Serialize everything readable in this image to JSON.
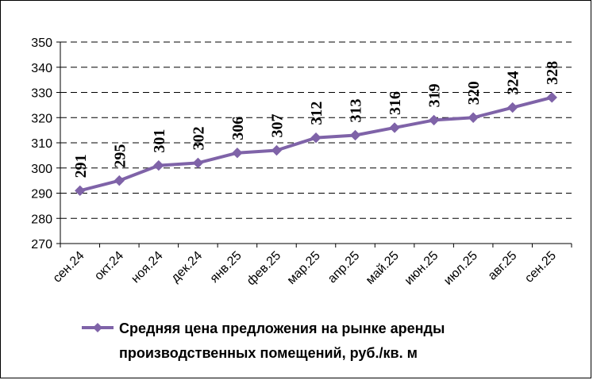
{
  "chart_data": {
    "type": "line",
    "categories": [
      "сен.24",
      "окт.24",
      "ноя.24",
      "дек.24",
      "янв.25",
      "фев.25",
      "мар.25",
      "апр.25",
      "май.25",
      "июн.25",
      "июл.25",
      "авг.25",
      "сен.25"
    ],
    "series": [
      {
        "name": "Средняя цена предложения на рынке аренды производственных помещений,  руб./кв. м",
        "values": [
          291,
          295,
          301,
          302,
          306,
          307,
          312,
          313,
          316,
          319,
          320,
          324,
          328
        ],
        "color": "#7f63a8"
      }
    ],
    "ylim": [
      270,
      350
    ],
    "yticks": [
      270,
      280,
      290,
      300,
      310,
      320,
      330,
      340,
      350
    ],
    "grid": "horizontal-dashed",
    "legend_position": "bottom",
    "legend_lines": [
      "Средняя цена предложения на рынке аренды",
      "производственных помещений,  руб./кв. м"
    ]
  }
}
